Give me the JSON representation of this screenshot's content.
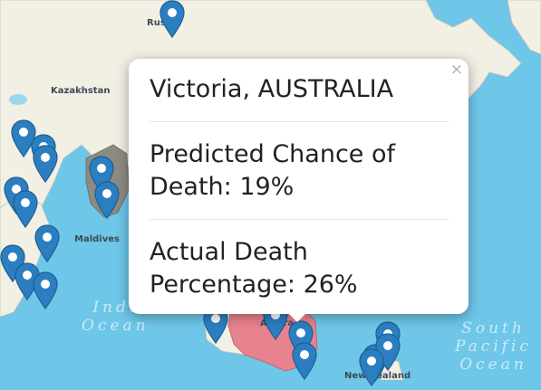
{
  "map": {
    "labels": {
      "russia": "Rus",
      "kazakhstan": "Kazakhstan",
      "maldives": "Maldives",
      "australia": "Austra",
      "new_zealand": "New Zealand",
      "indian_ocean_1": "Indi",
      "indian_ocean_2": "Ocean",
      "south_pacific_1": "South",
      "south_pacific_2": "Pacific",
      "south_pacific_3": "Ocean"
    },
    "colors": {
      "ocean": "#6ec6e8",
      "land": "#f2efe4",
      "highlight_region": "#e8828e",
      "marker": "#2b7fc1"
    }
  },
  "popup": {
    "close_glyph": "×",
    "title": "Victoria, AUSTRALIA",
    "predicted_line1": "Predicted Chance of",
    "predicted_line2": "Death: 19%",
    "actual_line1": "Actual Death",
    "actual_line2": "Percentage: 26%"
  }
}
